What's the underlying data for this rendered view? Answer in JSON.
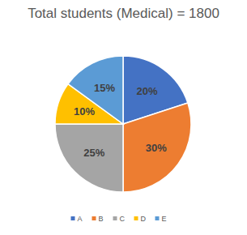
{
  "chart_data": {
    "type": "pie",
    "title": "Total students (Medical) = 1800",
    "categories": [
      "A",
      "B",
      "C",
      "D",
      "E"
    ],
    "values": [
      20,
      30,
      25,
      10,
      15
    ],
    "value_labels": [
      "20%",
      "30%",
      "25%",
      "10%",
      "15%"
    ],
    "colors": [
      "#4472c4",
      "#ed7d31",
      "#a5a5a5",
      "#ffc000",
      "#5b9bd5"
    ],
    "data_labels": true,
    "legend": "bottom"
  }
}
